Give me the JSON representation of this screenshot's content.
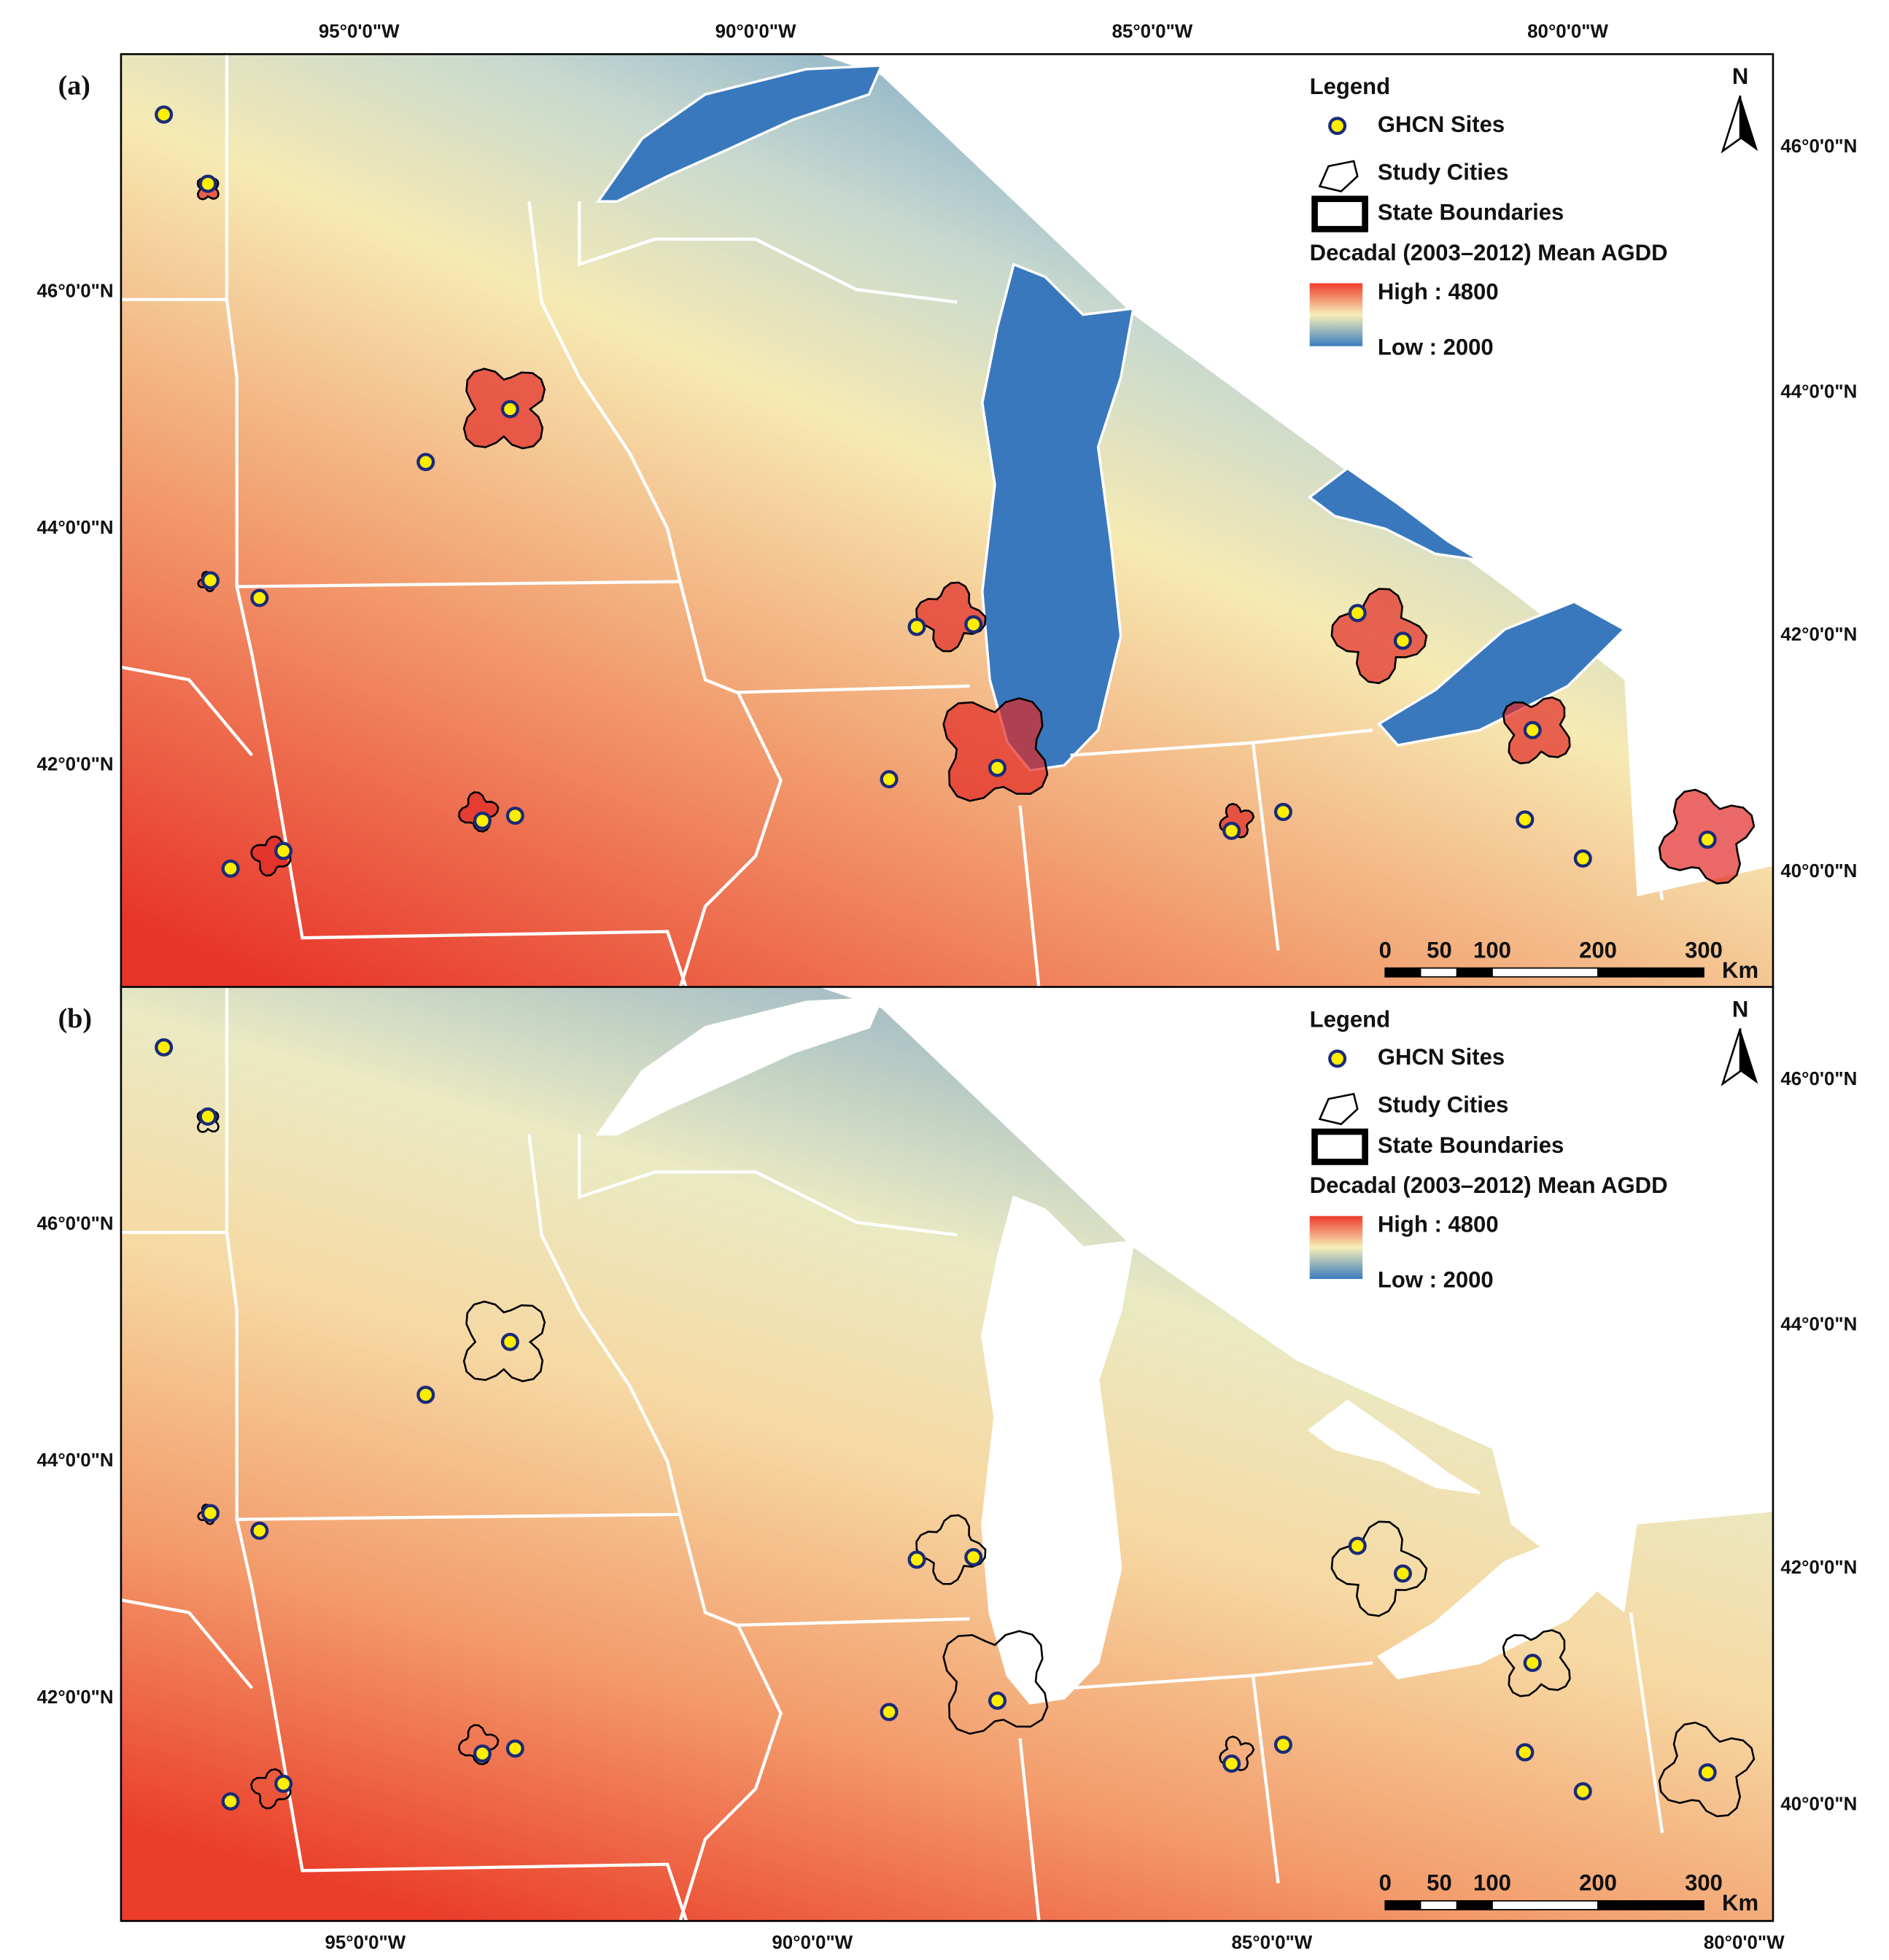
{
  "panels": [
    {
      "label": "(a)",
      "legend": {
        "title": "Legend",
        "items": [
          "GHCN Sites",
          "Study Cities",
          "State Boundaries"
        ],
        "ramp_title": "Decadal (2003–2012) Mean AGDD",
        "high": "High : 4800",
        "low": "Low : 2000"
      },
      "north": "N",
      "scale": {
        "ticks": [
          "0",
          "50",
          "100",
          "200",
          "300"
        ],
        "unit": "Km"
      },
      "left_lat": [
        "46°0'0\"N",
        "44°0'0\"N",
        "42°0'0\"N"
      ],
      "right_lat": [
        "46°0'0\"N",
        "44°0'0\"N",
        "42°0'0\"N",
        "40°0'0\"N"
      ]
    },
    {
      "label": "(b)",
      "legend": {
        "title": "Legend",
        "items": [
          "GHCN Sites",
          "Study Cities",
          "State Boundaries"
        ],
        "ramp_title": "Decadal (2003–2012) Mean AGDD",
        "high": "High : 4800",
        "low": " Low : 2000"
      },
      "north": "N",
      "scale": {
        "ticks": [
          "0",
          "50",
          "100",
          "200",
          "300"
        ],
        "unit": "Km"
      },
      "left_lat": [
        "46°0'0\"N",
        "44°0'0\"N",
        "42°0'0\"N"
      ],
      "right_lat": [
        "46°0'0\"N",
        "44°0'0\"N",
        "42°0'0\"N",
        "40°0'0\"N"
      ]
    }
  ],
  "top_lon": [
    "95°0'0\"W",
    "90°0'0\"W",
    "85°0'0\"W",
    "80°0'0\"W"
  ],
  "bottom_lon": [
    "95°0'0\"W",
    "90°0'0\"W",
    "85°0'0\"W",
    "80°0'0\"W"
  ]
}
